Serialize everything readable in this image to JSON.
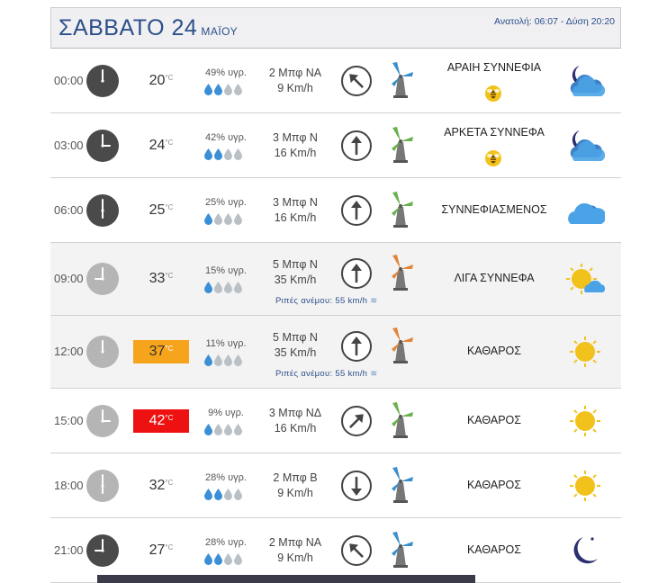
{
  "header": {
    "day": "ΣΑΒΒΑΤΟ 24",
    "month": "ΜΑΪΟΥ",
    "sun_times": "Ανατολή: 06:07  - Δύση 20:20"
  },
  "temp_unit": "°C",
  "rows": [
    {
      "time": "00:00",
      "temp": "20",
      "humidity": "49% υγρ.",
      "drops_filled": 2,
      "wind_beaufort": "2 Μπφ ΝΑ",
      "wind_speed": "9 Km/h",
      "gust": "",
      "wind_dir": "ΝΑ",
      "description": "ΑΡΑΙΗ ΣΥΝΝΕΦΙΑ",
      "bee": true,
      "weather_icon": "night-cloudy-icon"
    },
    {
      "time": "03:00",
      "temp": "24",
      "humidity": "42% υγρ.",
      "drops_filled": 2,
      "wind_beaufort": "3 Μπφ Ν",
      "wind_speed": "16 Km/h",
      "gust": "",
      "wind_dir": "Ν",
      "description": "ΑΡΚΕΤΑ ΣΥΝΝΕΦΑ",
      "bee": true,
      "weather_icon": "night-cloudy-icon"
    },
    {
      "time": "06:00",
      "temp": "25",
      "humidity": "25% υγρ.",
      "drops_filled": 1,
      "wind_beaufort": "3 Μπφ Ν",
      "wind_speed": "16 Km/h",
      "gust": "",
      "wind_dir": "Ν",
      "description": "ΣΥΝΝΕΦΙΑΣΜΕΝΟΣ",
      "bee": false,
      "weather_icon": "cloud-icon"
    },
    {
      "time": "09:00",
      "temp": "33",
      "humidity": "15% υγρ.",
      "drops_filled": 1,
      "wind_beaufort": "5 Μπφ Ν",
      "wind_speed": "35 Km/h",
      "gust": "Ριπές ανέμου: 55 km/h",
      "wind_dir": "Ν",
      "description": "ΛΙΓΑ ΣΥΝΝΕΦΑ",
      "bee": false,
      "weather_icon": "sun-cloud-icon"
    },
    {
      "time": "12:00",
      "temp": "37",
      "humidity": "11% υγρ.",
      "drops_filled": 1,
      "wind_beaufort": "5 Μπφ Ν",
      "wind_speed": "35 Km/h",
      "gust": "Ριπές ανέμου: 55 km/h",
      "wind_dir": "Ν",
      "description": "ΚΑΘΑΡΟΣ",
      "bee": false,
      "weather_icon": "sun-icon"
    },
    {
      "time": "15:00",
      "temp": "42",
      "humidity": "9% υγρ.",
      "drops_filled": 1,
      "wind_beaufort": "3 Μπφ ΝΔ",
      "wind_speed": "16 Km/h",
      "gust": "",
      "wind_dir": "ΝΔ",
      "description": "ΚΑΘΑΡΟΣ",
      "bee": false,
      "weather_icon": "sun-icon"
    },
    {
      "time": "18:00",
      "temp": "32",
      "humidity": "28% υγρ.",
      "drops_filled": 2,
      "wind_beaufort": "2 Μπφ Β",
      "wind_speed": "9 Km/h",
      "gust": "",
      "wind_dir": "Β",
      "description": "ΚΑΘΑΡΟΣ",
      "bee": false,
      "weather_icon": "sun-icon"
    },
    {
      "time": "21:00",
      "temp": "27",
      "humidity": "28% υγρ.",
      "drops_filled": 2,
      "wind_beaufort": "2 Μπφ ΝΑ",
      "wind_speed": "9 Km/h",
      "gust": "",
      "wind_dir": "ΝΑ",
      "description": "ΚΑΘΑΡΟΣ",
      "bee": false,
      "weather_icon": "moon-icon"
    }
  ],
  "colors": {
    "header_text": "#2c4f8a",
    "temp_hot_orange": "#f7a41d",
    "temp_hot_red": "#ee1111",
    "clock_dark": "#4a4a4a",
    "clock_light": "#b5b5b5",
    "drop_filled": "#3a8fd6",
    "drop_empty": "#b9c0c6",
    "sun": "#f2c21c",
    "cloud": "#4aa3e6"
  }
}
